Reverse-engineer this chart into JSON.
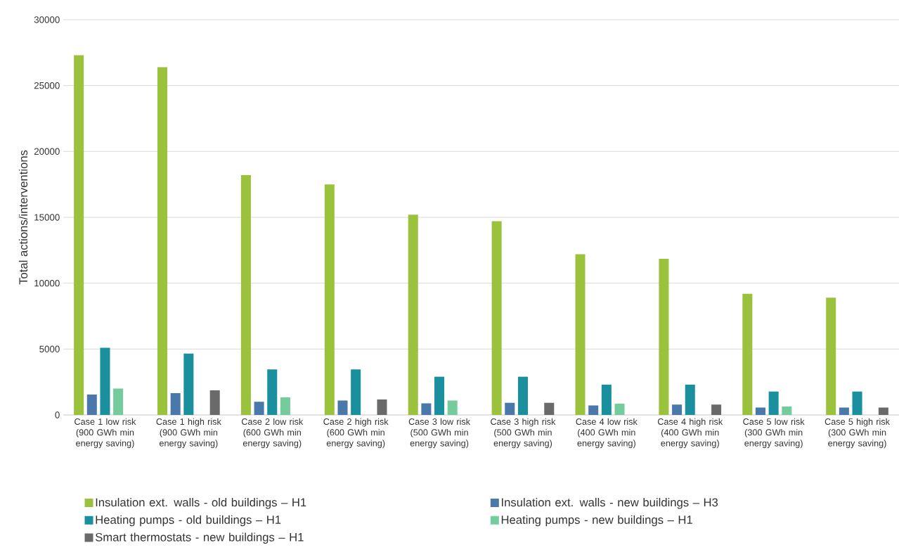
{
  "chart_data": {
    "type": "bar",
    "ylabel": "Total actions/interventions",
    "categories": [
      "Case 1 low risk (900 GWh min energy saving)",
      "Case 1 high risk (900 GWh min energy saving)",
      "Case 2 low risk (600 GWh min energy saving)",
      "Case 2 high risk (600 GWh min energy saving)",
      "Case 3 low risk (500 GWh min energy saving)",
      "Case 3 high risk (500 GWh min energy saving)",
      "Case 4 low risk (400 GWh min energy saving)",
      "Case 4 high risk (400 GWh min energy saving)",
      "Case 5 low risk (300 GWh min energy saving)",
      "Case 5 high risk (300 GWh min energy saving)"
    ],
    "series": [
      {
        "name": "Insulation ext. walls - old buildings – H1",
        "color": "#9bc23c",
        "values": [
          27300,
          26400,
          18200,
          17500,
          15200,
          14700,
          12200,
          11850,
          9200,
          8900
        ]
      },
      {
        "name": "Insulation ext. walls - new buildings – H3",
        "color": "#4a78ab",
        "values": [
          1550,
          1650,
          1000,
          1100,
          880,
          920,
          720,
          780,
          560,
          560
        ]
      },
      {
        "name": "Heating pumps - old buildings – H1",
        "color": "#1a8f9e",
        "values": [
          5100,
          4650,
          3450,
          3450,
          2900,
          2900,
          2300,
          2300,
          1770,
          1770
        ]
      },
      {
        "name": "Heating pumps - new buildings – H1",
        "color": "#74cc9c",
        "values": [
          2000,
          0,
          1330,
          0,
          1100,
          0,
          860,
          0,
          640,
          0
        ]
      },
      {
        "name": "Smart thermostats - new buildings – H1",
        "color": "#6b6a6b",
        "values": [
          0,
          1870,
          0,
          1170,
          0,
          920,
          0,
          780,
          0,
          560
        ]
      }
    ],
    "ylim": [
      0,
      30000
    ],
    "yticks": [
      0,
      5000,
      10000,
      15000,
      20000,
      25000,
      30000
    ],
    "grid": "y",
    "legend": "bottom"
  }
}
